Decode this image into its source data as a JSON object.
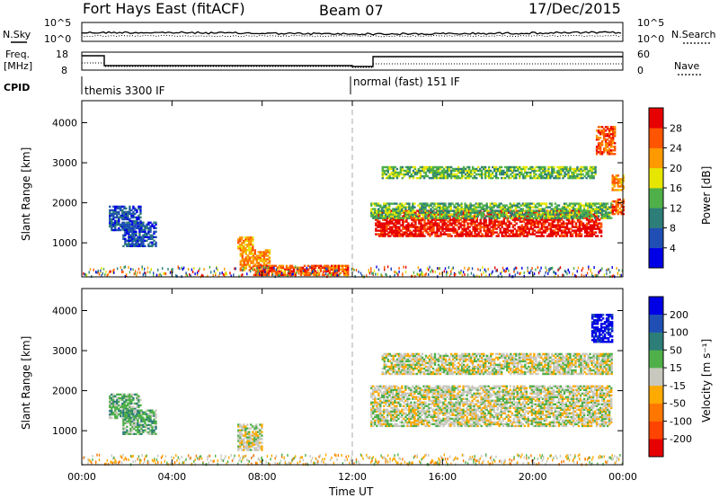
{
  "header": {
    "title": "Fort Hays East (fitACF)",
    "beam": "Beam 07",
    "date": "17/Dec/2015"
  },
  "noise_panel": {
    "left_label": "N.Sky",
    "right_label": "N.Search",
    "left_ticks": [
      "10^5",
      "10^0"
    ],
    "right_ticks": [
      "10^5",
      "10^0"
    ]
  },
  "freq_panel": {
    "left_label_1": "Freq.",
    "left_label_2": "[MHz]",
    "right_label": "Nave",
    "left_ticks": [
      "18",
      "8"
    ],
    "right_ticks": [
      "60",
      "0"
    ]
  },
  "cpid": {
    "label": "CPID",
    "mode_1": "themis 3300 IF",
    "mode_2": "normal (fast) 151 IF"
  },
  "chart_data": [
    {
      "type": "heatmap",
      "name": "power",
      "ylabel": "Slant Range [km]",
      "yticks": [
        "1000",
        "2000",
        "3000",
        "4000"
      ],
      "ylim": [
        150,
        4550
      ],
      "xticks": [
        "00:00",
        "04:00",
        "08:00",
        "12:00",
        "16:00",
        "20:00",
        "00:00"
      ],
      "xlim": [
        0,
        24
      ],
      "colorbar": {
        "label": "Power [dB]",
        "ticks": [
          "4",
          "8",
          "12",
          "16",
          "20",
          "24",
          "28"
        ],
        "colors": [
          "#0000e6",
          "#1f4fb4",
          "#2d7d78",
          "#4fb04a",
          "#e6e600",
          "#ff9900",
          "#ff5500",
          "#e60000"
        ]
      },
      "regions": [
        {
          "t0": 1.2,
          "t1": 2.6,
          "r0": 1300,
          "r1": 1900,
          "level": 1
        },
        {
          "t0": 1.8,
          "t1": 3.3,
          "r0": 900,
          "r1": 1500,
          "level": 1
        },
        {
          "t0": 6.9,
          "t1": 7.6,
          "r0": 800,
          "r1": 1150,
          "level": 5
        },
        {
          "t0": 7.0,
          "t1": 8.3,
          "r0": 300,
          "r1": 800,
          "level": 5
        },
        {
          "t0": 7.6,
          "t1": 11.8,
          "r0": 180,
          "r1": 450,
          "level": 6
        },
        {
          "t0": 13.0,
          "t1": 23.0,
          "r0": 1150,
          "r1": 1800,
          "level": 7
        },
        {
          "t0": 12.8,
          "t1": 23.5,
          "r0": 1600,
          "r1": 2000,
          "level": 3
        },
        {
          "t0": 13.3,
          "t1": 22.8,
          "r0": 2600,
          "r1": 2900,
          "level": 3
        },
        {
          "t0": 22.8,
          "t1": 23.6,
          "r0": 3200,
          "r1": 3900,
          "level": 6
        },
        {
          "t0": 23.5,
          "t1": 24.0,
          "r0": 1700,
          "r1": 2100,
          "level": 6
        },
        {
          "t0": 23.5,
          "t1": 24.0,
          "r0": 2300,
          "r1": 2700,
          "level": 5
        }
      ],
      "ground_band": {
        "t0": 0.0,
        "t1": 24.0,
        "r0": 150,
        "r1": 400
      }
    },
    {
      "type": "heatmap",
      "name": "velocity",
      "ylabel": "Slant Range [km]",
      "yticks": [
        "1000",
        "2000",
        "3000",
        "4000"
      ],
      "ylim": [
        150,
        4550
      ],
      "xticks": [
        "00:00",
        "04:00",
        "08:00",
        "12:00",
        "16:00",
        "20:00",
        "00:00"
      ],
      "xlim": [
        0,
        24
      ],
      "xlabel": "Time UT",
      "colorbar": {
        "label": "Velocity [m s⁻¹]",
        "ticks": [
          "200",
          "100",
          "50",
          "15",
          "-15",
          "-50",
          "-100",
          "-200"
        ],
        "colors": [
          "#0000e6",
          "#1f4fb4",
          "#2d7d78",
          "#4fb04a",
          "#c8c8be",
          "#ffaa00",
          "#ff7700",
          "#ff4400",
          "#e60000"
        ]
      },
      "regions": [
        {
          "t0": 1.2,
          "t1": 2.6,
          "r0": 1300,
          "r1": 1900,
          "level": 3
        },
        {
          "t0": 1.8,
          "t1": 3.3,
          "r0": 900,
          "r1": 1500,
          "level": 3
        },
        {
          "t0": 6.9,
          "t1": 8.0,
          "r0": 500,
          "r1": 1150,
          "level": 4
        },
        {
          "t0": 12.8,
          "t1": 23.5,
          "r0": 1100,
          "r1": 2100,
          "level": 4
        },
        {
          "t0": 13.3,
          "t1": 23.5,
          "r0": 2400,
          "r1": 2900,
          "level": 4
        },
        {
          "t0": 22.6,
          "t1": 23.5,
          "r0": 3200,
          "r1": 3900,
          "level": 0
        }
      ],
      "ground_band": {
        "t0": 0.0,
        "t1": 24.0,
        "r0": 150,
        "r1": 400
      }
    }
  ]
}
